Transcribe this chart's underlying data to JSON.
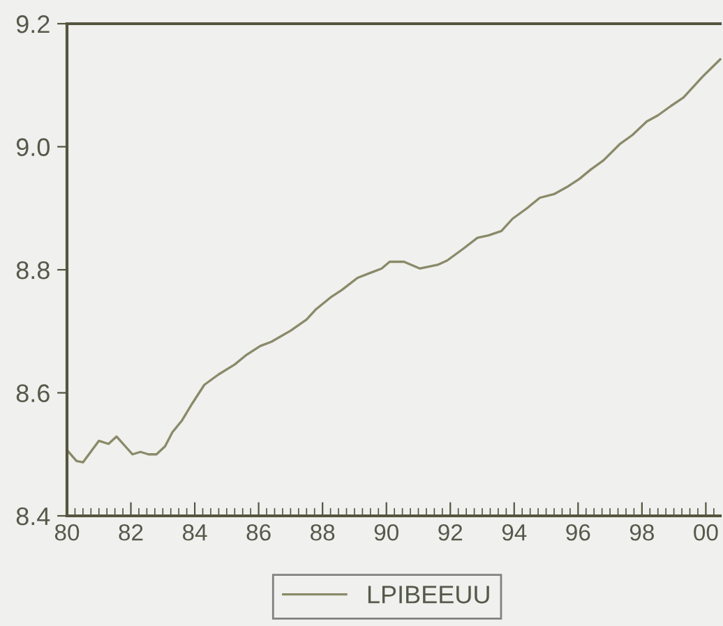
{
  "chart_data": {
    "type": "line",
    "x": [
      1980.0,
      1980.3,
      1980.5,
      1981.0,
      1981.3,
      1981.55,
      1982.05,
      1982.3,
      1982.55,
      1982.8,
      1983.07,
      1983.3,
      1983.6,
      1983.9,
      1984.3,
      1984.75,
      1985.25,
      1985.6,
      1986.05,
      1986.4,
      1987.0,
      1987.5,
      1987.8,
      1988.25,
      1988.6,
      1989.1,
      1989.5,
      1989.85,
      1990.1,
      1990.55,
      1991.05,
      1991.6,
      1991.9,
      1992.4,
      1992.85,
      1993.2,
      1993.6,
      1993.95,
      1994.4,
      1994.8,
      1995.25,
      1995.7,
      1996.05,
      1996.4,
      1996.8,
      1997.3,
      1997.7,
      1998.15,
      1998.5,
      1998.9,
      1999.3,
      1999.9,
      2000.45
    ],
    "series": [
      {
        "name": "LPIBEEUU",
        "color": "#8a8a6a",
        "values": [
          8.507,
          8.489,
          8.487,
          8.522,
          8.517,
          8.529,
          8.5,
          8.504,
          8.5,
          8.5,
          8.513,
          8.536,
          8.555,
          8.581,
          8.613,
          8.63,
          8.646,
          8.661,
          8.676,
          8.683,
          8.701,
          8.719,
          8.736,
          8.755,
          8.767,
          8.787,
          8.795,
          8.802,
          8.813,
          8.813,
          8.802,
          8.808,
          8.815,
          8.834,
          8.852,
          8.856,
          8.863,
          8.883,
          8.9,
          8.917,
          8.923,
          8.936,
          8.948,
          8.963,
          8.978,
          9.004,
          9.019,
          9.041,
          9.051,
          9.066,
          9.08,
          9.114,
          9.142
        ]
      }
    ],
    "xlim": [
      1980,
      2000.45
    ],
    "xticks": [
      {
        "value": 1980,
        "label": "80"
      },
      {
        "value": 1980.25,
        "label": null
      },
      {
        "value": 1980.5,
        "label": null
      },
      {
        "value": 1980.75,
        "label": null
      },
      {
        "value": 1981,
        "label": null
      },
      {
        "value": 1981.25,
        "label": null
      },
      {
        "value": 1981.5,
        "label": null
      },
      {
        "value": 1981.75,
        "label": null
      },
      {
        "value": 1982,
        "label": "82"
      },
      {
        "value": 1982.25,
        "label": null
      },
      {
        "value": 1982.5,
        "label": null
      },
      {
        "value": 1982.75,
        "label": null
      },
      {
        "value": 1983,
        "label": null
      },
      {
        "value": 1983.25,
        "label": null
      },
      {
        "value": 1983.5,
        "label": null
      },
      {
        "value": 1983.75,
        "label": null
      },
      {
        "value": 1984,
        "label": "84"
      },
      {
        "value": 1984.25,
        "label": null
      },
      {
        "value": 1984.5,
        "label": null
      },
      {
        "value": 1984.75,
        "label": null
      },
      {
        "value": 1985,
        "label": null
      },
      {
        "value": 1985.25,
        "label": null
      },
      {
        "value": 1985.5,
        "label": null
      },
      {
        "value": 1985.75,
        "label": null
      },
      {
        "value": 1986,
        "label": "86"
      },
      {
        "value": 1986.25,
        "label": null
      },
      {
        "value": 1986.5,
        "label": null
      },
      {
        "value": 1986.75,
        "label": null
      },
      {
        "value": 1987,
        "label": null
      },
      {
        "value": 1987.25,
        "label": null
      },
      {
        "value": 1987.5,
        "label": null
      },
      {
        "value": 1987.75,
        "label": null
      },
      {
        "value": 1988,
        "label": "88"
      },
      {
        "value": 1988.25,
        "label": null
      },
      {
        "value": 1988.5,
        "label": null
      },
      {
        "value": 1988.75,
        "label": null
      },
      {
        "value": 1989,
        "label": null
      },
      {
        "value": 1989.25,
        "label": null
      },
      {
        "value": 1989.5,
        "label": null
      },
      {
        "value": 1989.75,
        "label": null
      },
      {
        "value": 1990,
        "label": "90"
      },
      {
        "value": 1990.25,
        "label": null
      },
      {
        "value": 1990.5,
        "label": null
      },
      {
        "value": 1990.75,
        "label": null
      },
      {
        "value": 1991,
        "label": null
      },
      {
        "value": 1991.25,
        "label": null
      },
      {
        "value": 1991.5,
        "label": null
      },
      {
        "value": 1991.75,
        "label": null
      },
      {
        "value": 1992,
        "label": "92"
      },
      {
        "value": 1992.25,
        "label": null
      },
      {
        "value": 1992.5,
        "label": null
      },
      {
        "value": 1992.75,
        "label": null
      },
      {
        "value": 1993,
        "label": null
      },
      {
        "value": 1993.25,
        "label": null
      },
      {
        "value": 1993.5,
        "label": null
      },
      {
        "value": 1993.75,
        "label": null
      },
      {
        "value": 1994,
        "label": "94"
      },
      {
        "value": 1994.25,
        "label": null
      },
      {
        "value": 1994.5,
        "label": null
      },
      {
        "value": 1994.75,
        "label": null
      },
      {
        "value": 1995,
        "label": null
      },
      {
        "value": 1995.25,
        "label": null
      },
      {
        "value": 1995.5,
        "label": null
      },
      {
        "value": 1995.75,
        "label": null
      },
      {
        "value": 1996,
        "label": "96"
      },
      {
        "value": 1996.25,
        "label": null
      },
      {
        "value": 1996.5,
        "label": null
      },
      {
        "value": 1996.75,
        "label": null
      },
      {
        "value": 1997,
        "label": null
      },
      {
        "value": 1997.25,
        "label": null
      },
      {
        "value": 1997.5,
        "label": null
      },
      {
        "value": 1997.75,
        "label": null
      },
      {
        "value": 1998,
        "label": "98"
      },
      {
        "value": 1998.25,
        "label": null
      },
      {
        "value": 1998.5,
        "label": null
      },
      {
        "value": 1998.75,
        "label": null
      },
      {
        "value": 1999,
        "label": null
      },
      {
        "value": 1999.25,
        "label": null
      },
      {
        "value": 1999.5,
        "label": null
      },
      {
        "value": 1999.75,
        "label": null
      },
      {
        "value": 2000,
        "label": "00"
      },
      {
        "value": 2000.25,
        "label": null
      }
    ],
    "ylim": [
      8.4,
      9.2
    ],
    "yticks": [
      {
        "value": 8.4,
        "label": "8.4"
      },
      {
        "value": 8.6,
        "label": "8.6"
      },
      {
        "value": 8.8,
        "label": "8.8"
      },
      {
        "value": 9.0,
        "label": "9.0"
      },
      {
        "value": 9.2,
        "label": "9.2"
      }
    ],
    "legend": "bottom",
    "grid": false,
    "marker": "none",
    "line_style": "solid"
  }
}
